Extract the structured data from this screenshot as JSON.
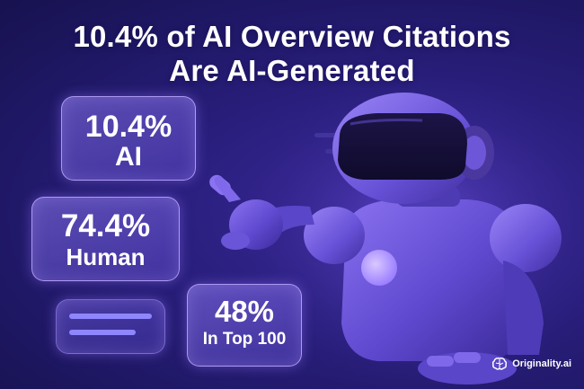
{
  "title": {
    "line1": "10.4% of AI Overview Citations",
    "line2": "Are AI-Generated"
  },
  "stats": [
    {
      "value": "10.4%",
      "label": "AI"
    },
    {
      "value": "74.4%",
      "label": "Human"
    },
    {
      "value": "48%",
      "label": "In Top 100"
    }
  ],
  "brand": {
    "name": "Originality.ai",
    "icon": "brain-icon"
  },
  "colors": {
    "background": "#1e1763",
    "card_border": "#beaaff",
    "robot_body": "#6a55d8",
    "chest_light": "#b49cff"
  }
}
